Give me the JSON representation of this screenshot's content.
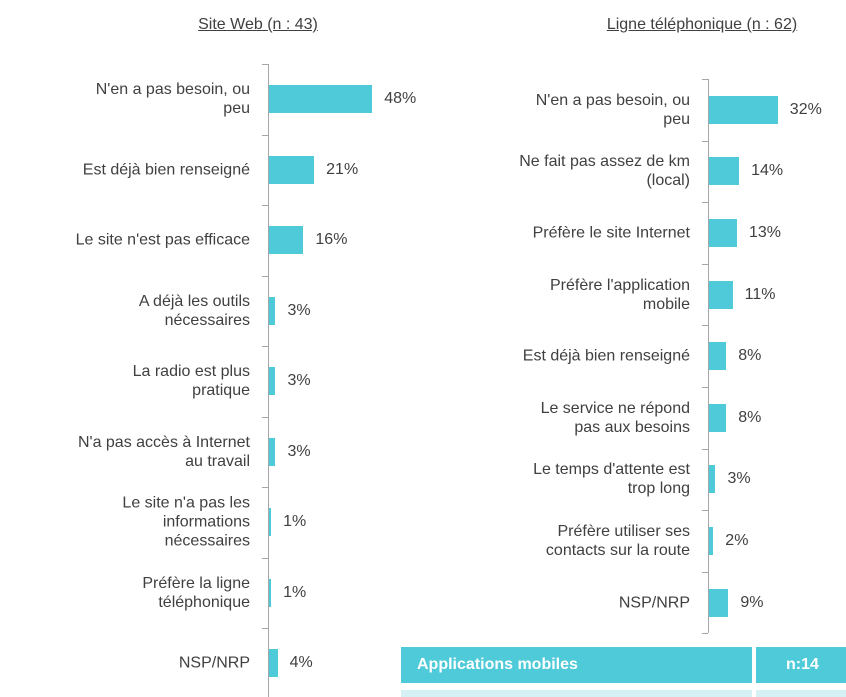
{
  "chart_data": [
    {
      "type": "bar",
      "orientation": "horizontal",
      "title": "Site Web (n : 43)",
      "color": "#4ecad8",
      "categories": [
        "N'en a pas besoin, ou\npeu",
        "Est déjà bien renseigné",
        "Le site n'est pas efficace",
        "A déjà les outils\nnécessaires",
        "La radio est plus\npratique",
        "N'a pas accès à Internet\nau travail",
        "Le site n'a pas les\ninformations\nnécessaires",
        "Préfère la ligne\ntéléphonique",
        "NSP/NRP"
      ],
      "values": [
        48,
        21,
        16,
        3,
        3,
        3,
        1,
        1,
        4
      ],
      "value_labels": [
        "48%",
        "21%",
        "16%",
        "3%",
        "3%",
        "3%",
        "1%",
        "1%",
        "4%"
      ]
    },
    {
      "type": "bar",
      "orientation": "horizontal",
      "title": "Ligne téléphonique (n : 62)",
      "color": "#4ecad8",
      "categories": [
        "N'en a pas besoin, ou\npeu",
        "Ne fait pas assez de km\n(local)",
        "Préfère le site Internet",
        "Préfère l'application\nmobile",
        "Est déjà bien renseigné",
        "Le service ne répond\npas aux besoins",
        "Le temps d'attente est\ntrop long",
        "Préfère utiliser ses\ncontacts sur la route",
        "NSP/NRP"
      ],
      "values": [
        32,
        14,
        13,
        11,
        8,
        8,
        3,
        2,
        9
      ],
      "value_labels": [
        "32%",
        "14%",
        "13%",
        "11%",
        "8%",
        "8%",
        "3%",
        "2%",
        "9%"
      ]
    }
  ],
  "table": {
    "header": [
      "Applications mobiles",
      "n:14"
    ]
  }
}
